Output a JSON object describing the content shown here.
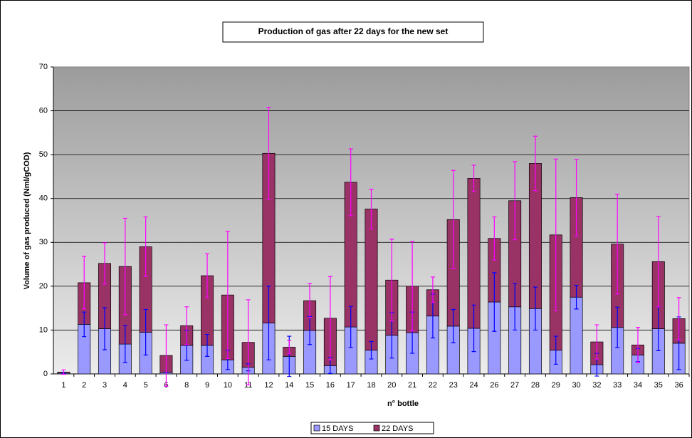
{
  "chart_data": {
    "type": "stacked_bar",
    "title": "Production of gas after 22 days for the new set",
    "x_label": "n° bottle",
    "y_label": "Volume of gas produced (Nml/gCOD)",
    "categories": [
      "1",
      "2",
      "3",
      "4",
      "5",
      "6",
      "8",
      "9",
      "10",
      "11",
      "12",
      "14",
      "15",
      "16",
      "17",
      "18",
      "20",
      "21",
      "22",
      "23",
      "24",
      "26",
      "27",
      "28",
      "29",
      "30",
      "32",
      "33",
      "34",
      "35",
      "36"
    ],
    "series": [
      {
        "name": "15 DAYS",
        "color": "#9999ff",
        "error_color": "#0000ff",
        "values": [
          0.2,
          11.3,
          10.3,
          6.8,
          9.5,
          0.3,
          6.5,
          6.5,
          3.2,
          1.5,
          11.6,
          4,
          9.9,
          1.9,
          10.7,
          5.4,
          8.8,
          9.4,
          13.2,
          10.9,
          10.4,
          16.4,
          15.3,
          14.9,
          5.4,
          17.5,
          2.1,
          10.6,
          4.3,
          10.3,
          7
        ],
        "errors": [
          0,
          2.8,
          4.8,
          4.2,
          5.2,
          0,
          3.4,
          2.5,
          2.2,
          0.8,
          8.4,
          4.6,
          3.2,
          1.8,
          4.7,
          2,
          5.2,
          4.7,
          5,
          3.8,
          5.3,
          6.7,
          5.3,
          4.9,
          3.2,
          2.7,
          2.6,
          4.6,
          1.5,
          5,
          6
        ]
      },
      {
        "name": "22 DAYS",
        "color": "#993366",
        "error_color": "#ff00ff",
        "values": [
          0.2,
          9.5,
          14.9,
          17.7,
          19.5,
          3.9,
          4.5,
          15.9,
          14.8,
          5.7,
          38.7,
          2.1,
          6.8,
          10.8,
          33,
          32.2,
          12.6,
          10.6,
          6,
          24.3,
          34.2,
          14.5,
          24.2,
          33.1,
          26.3,
          22.7,
          5.2,
          19,
          2.3,
          15.3,
          5.6
        ],
        "errors": [
          0.5,
          6,
          4.7,
          11,
          6.8,
          7,
          4.3,
          5,
          14.5,
          9.7,
          10.5,
          1.5,
          3.9,
          9.5,
          7.6,
          4.5,
          9.3,
          10.2,
          2.9,
          11.2,
          3,
          4.9,
          8.9,
          6.2,
          17.3,
          8.7,
          3.9,
          11.4,
          4,
          10.3,
          4.8
        ]
      }
    ],
    "ylim": [
      0,
      70
    ],
    "yticks": [
      0,
      10,
      20,
      30,
      40,
      50,
      60,
      70
    ],
    "grid": true,
    "legend": "bottom"
  }
}
